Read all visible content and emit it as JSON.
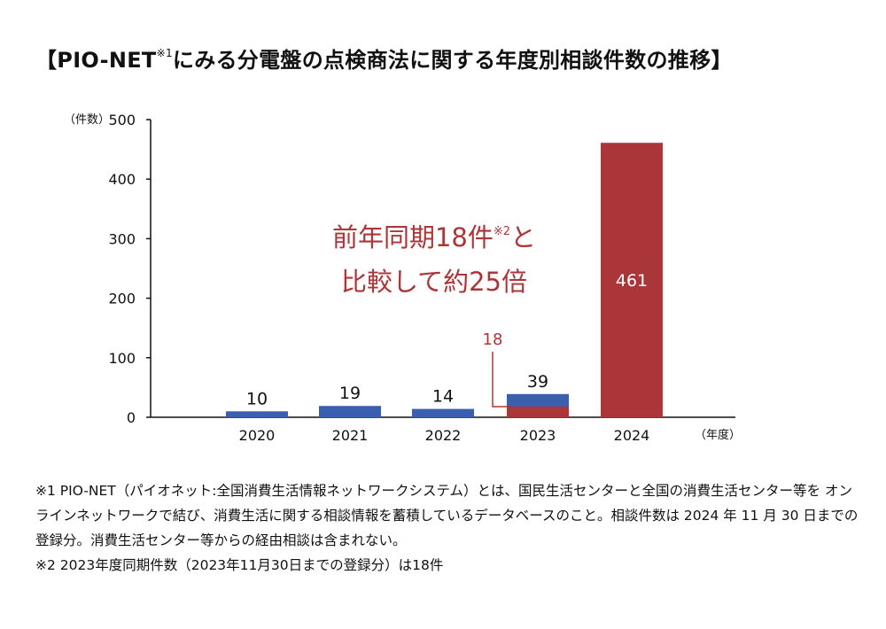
{
  "title": {
    "main": "【PIO-NET",
    "sup": "※1",
    "rest": "にみる分電盤の点検商法に関する年度別相談件数の推移】"
  },
  "chart_data": {
    "type": "bar",
    "y_unit_label": "（件数）",
    "x_unit_label": "（年度）",
    "ylim": [
      0,
      500
    ],
    "yticks": [
      0,
      100,
      200,
      300,
      400,
      500
    ],
    "categories": [
      "2020",
      "2021",
      "2022",
      "2023",
      "2024"
    ],
    "values": [
      10,
      19,
      14,
      39,
      461
    ],
    "value_labels": [
      "10",
      "19",
      "14",
      "39",
      "461"
    ],
    "bar_colors": [
      "#3a5fad",
      "#3a5fad",
      "#3a5fad",
      "#3a5fad",
      "#ab3639"
    ],
    "highlight": {
      "category": "2023",
      "same_period_value": 18,
      "label": "18",
      "color": "#ab3639"
    },
    "annotation": {
      "line1": "前年同期18件",
      "line1_sup": "※2",
      "line1_tail": "と",
      "line2": "比較して約25倍",
      "color": "#ab3639"
    }
  },
  "notes": [
    "※1 PIO-NET（パイオネット:全国消費生活情報ネットワークシステム）とは、国民生活センターと全国の消費生活センター等を オンラインネットワークで結び、消費生活に関する相談情報を蓄積しているデータベースのこと。相談件数は 2024 年 11 月 30 日までの登録分。消費生活センター等からの経由相談は含まれない。",
    "※2 2023年度同期件数（2023年11月30日までの登録分）は18件"
  ]
}
